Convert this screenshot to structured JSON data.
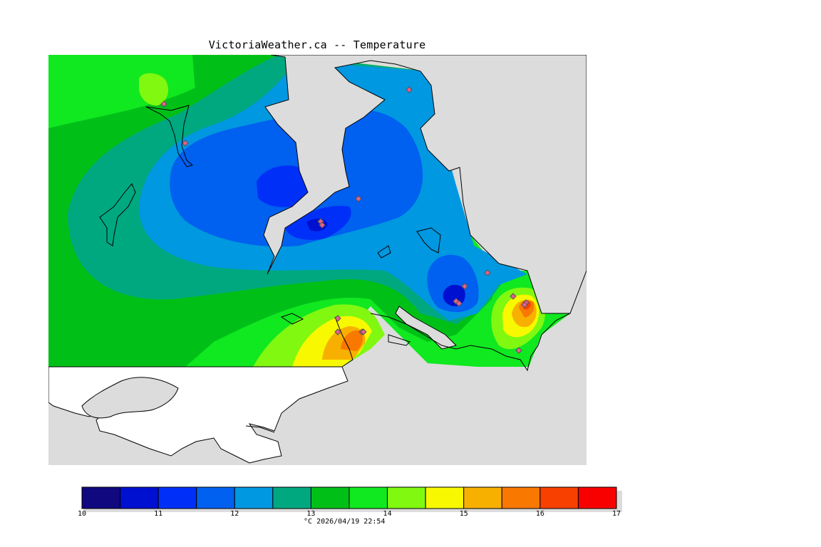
{
  "title": "VictoriaWeather.ca -- Temperature",
  "unit": "°C",
  "timestamp": "2026/04/19 22:54",
  "legend": {
    "min": 10,
    "max": 17,
    "step": 0.5,
    "tick_labels": [
      "10",
      "11",
      "12",
      "13",
      "14",
      "15",
      "16",
      "17"
    ],
    "colors": [
      "#10087e",
      "#0010d0",
      "#0030f8",
      "#0060f0",
      "#0098e0",
      "#00a880",
      "#00c018",
      "#10e820",
      "#80f810",
      "#f8f800",
      "#f8b000",
      "#f87800",
      "#f84000",
      "#f80000"
    ]
  },
  "colors": {
    "land_mask": "#dcdcdc",
    "water_outside_grid": "#ffffff",
    "coastline": "#000000",
    "station_marker": "#e8608c"
  },
  "stations": [
    {
      "temp": 14.0
    },
    {
      "temp": 13.0
    },
    {
      "temp": 12.0
    },
    {
      "temp": 11.0
    },
    {
      "temp": 10.8
    },
    {
      "temp": 12.2
    },
    {
      "temp": 11.0
    },
    {
      "temp": 11.0
    },
    {
      "temp": 12.6
    },
    {
      "temp": 11.8
    },
    {
      "temp": 14.5
    },
    {
      "temp": 16.0
    },
    {
      "temp": 16.0
    },
    {
      "temp": 15.5
    },
    {
      "temp": 15.8
    },
    {
      "temp": 14.2
    },
    {
      "temp": 15.5
    },
    {
      "temp": 14.6
    }
  ]
}
